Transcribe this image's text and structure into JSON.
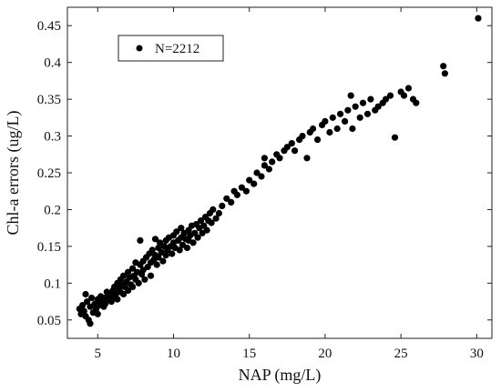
{
  "chart_data": {
    "type": "scatter",
    "title": "",
    "xlabel": "NAP (mg/L)",
    "ylabel": "Chl-a errors (ug/L)",
    "xlim": [
      3,
      31
    ],
    "ylim": [
      0.025,
      0.475
    ],
    "x_ticks": [
      5,
      10,
      15,
      20,
      25,
      30
    ],
    "y_ticks": [
      0.05,
      0.1,
      0.15,
      0.2,
      0.25,
      0.3,
      0.35,
      0.4,
      0.45
    ],
    "grid": false,
    "legend_position": "top-left",
    "marker_color": "#000000",
    "series": [
      {
        "name": "N=2212",
        "points": [
          [
            3.8,
            0.065
          ],
          [
            3.9,
            0.058
          ],
          [
            4.0,
            0.07
          ],
          [
            4.1,
            0.062
          ],
          [
            4.2,
            0.085
          ],
          [
            4.2,
            0.055
          ],
          [
            4.3,
            0.075
          ],
          [
            4.4,
            0.05
          ],
          [
            4.5,
            0.068
          ],
          [
            4.5,
            0.045
          ],
          [
            4.6,
            0.08
          ],
          [
            4.7,
            0.06
          ],
          [
            4.8,
            0.072
          ],
          [
            4.9,
            0.065
          ],
          [
            5.0,
            0.078
          ],
          [
            5.0,
            0.058
          ],
          [
            5.1,
            0.07
          ],
          [
            5.2,
            0.082
          ],
          [
            5.3,
            0.075
          ],
          [
            5.4,
            0.068
          ],
          [
            5.5,
            0.08
          ],
          [
            5.5,
            0.072
          ],
          [
            5.6,
            0.088
          ],
          [
            5.7,
            0.078
          ],
          [
            5.8,
            0.085
          ],
          [
            5.9,
            0.075
          ],
          [
            6.0,
            0.09
          ],
          [
            6.0,
            0.08
          ],
          [
            6.1,
            0.095
          ],
          [
            6.2,
            0.085
          ],
          [
            6.3,
            0.1
          ],
          [
            6.3,
            0.078
          ],
          [
            6.4,
            0.092
          ],
          [
            6.5,
            0.105
          ],
          [
            6.5,
            0.088
          ],
          [
            6.6,
            0.098
          ],
          [
            6.7,
            0.11
          ],
          [
            6.7,
            0.085
          ],
          [
            6.8,
            0.095
          ],
          [
            6.9,
            0.102
          ],
          [
            7.0,
            0.115
          ],
          [
            7.0,
            0.09
          ],
          [
            7.1,
            0.108
          ],
          [
            7.2,
            0.098
          ],
          [
            7.3,
            0.12
          ],
          [
            7.3,
            0.095
          ],
          [
            7.4,
            0.11
          ],
          [
            7.5,
            0.105
          ],
          [
            7.5,
            0.128
          ],
          [
            7.6,
            0.115
          ],
          [
            7.7,
            0.1
          ],
          [
            7.8,
            0.125
          ],
          [
            7.8,
            0.158
          ],
          [
            7.9,
            0.112
          ],
          [
            8.0,
            0.13
          ],
          [
            8.0,
            0.118
          ],
          [
            8.1,
            0.105
          ],
          [
            8.2,
            0.135
          ],
          [
            8.3,
            0.122
          ],
          [
            8.4,
            0.14
          ],
          [
            8.5,
            0.128
          ],
          [
            8.5,
            0.11
          ],
          [
            8.6,
            0.145
          ],
          [
            8.7,
            0.132
          ],
          [
            8.8,
            0.138
          ],
          [
            8.8,
            0.16
          ],
          [
            8.9,
            0.125
          ],
          [
            9.0,
            0.148
          ],
          [
            9.0,
            0.135
          ],
          [
            9.1,
            0.155
          ],
          [
            9.2,
            0.142
          ],
          [
            9.3,
            0.13
          ],
          [
            9.4,
            0.15
          ],
          [
            9.5,
            0.158
          ],
          [
            9.5,
            0.138
          ],
          [
            9.6,
            0.145
          ],
          [
            9.7,
            0.162
          ],
          [
            9.8,
            0.15
          ],
          [
            9.9,
            0.14
          ],
          [
            10.0,
            0.165
          ],
          [
            10.0,
            0.155
          ],
          [
            10.1,
            0.148
          ],
          [
            10.2,
            0.17
          ],
          [
            10.3,
            0.158
          ],
          [
            10.4,
            0.145
          ],
          [
            10.5,
            0.162
          ],
          [
            10.5,
            0.175
          ],
          [
            10.6,
            0.152
          ],
          [
            10.7,
            0.168
          ],
          [
            10.8,
            0.16
          ],
          [
            10.9,
            0.148
          ],
          [
            11.0,
            0.172
          ],
          [
            11.0,
            0.158
          ],
          [
            11.1,
            0.165
          ],
          [
            11.2,
            0.178
          ],
          [
            11.3,
            0.155
          ],
          [
            11.4,
            0.168
          ],
          [
            11.5,
            0.18
          ],
          [
            11.6,
            0.162
          ],
          [
            11.7,
            0.175
          ],
          [
            11.8,
            0.185
          ],
          [
            11.9,
            0.168
          ],
          [
            12.0,
            0.178
          ],
          [
            12.1,
            0.19
          ],
          [
            12.2,
            0.172
          ],
          [
            12.3,
            0.185
          ],
          [
            12.4,
            0.195
          ],
          [
            12.5,
            0.182
          ],
          [
            12.6,
            0.2
          ],
          [
            12.8,
            0.188
          ],
          [
            13.0,
            0.195
          ],
          [
            13.2,
            0.205
          ],
          [
            13.5,
            0.215
          ],
          [
            13.8,
            0.21
          ],
          [
            14.0,
            0.225
          ],
          [
            14.2,
            0.22
          ],
          [
            14.5,
            0.23
          ],
          [
            14.8,
            0.225
          ],
          [
            15.0,
            0.24
          ],
          [
            15.3,
            0.235
          ],
          [
            15.5,
            0.25
          ],
          [
            15.8,
            0.245
          ],
          [
            16.0,
            0.26
          ],
          [
            16.0,
            0.27
          ],
          [
            16.3,
            0.255
          ],
          [
            16.5,
            0.265
          ],
          [
            16.8,
            0.275
          ],
          [
            17.0,
            0.27
          ],
          [
            17.3,
            0.28
          ],
          [
            17.5,
            0.285
          ],
          [
            17.8,
            0.29
          ],
          [
            18.0,
            0.28
          ],
          [
            18.3,
            0.295
          ],
          [
            18.5,
            0.3
          ],
          [
            18.8,
            0.27
          ],
          [
            19.0,
            0.305
          ],
          [
            19.2,
            0.31
          ],
          [
            19.5,
            0.295
          ],
          [
            19.8,
            0.315
          ],
          [
            20.0,
            0.32
          ],
          [
            20.3,
            0.305
          ],
          [
            20.5,
            0.325
          ],
          [
            20.8,
            0.31
          ],
          [
            21.0,
            0.33
          ],
          [
            21.3,
            0.32
          ],
          [
            21.5,
            0.335
          ],
          [
            21.7,
            0.355
          ],
          [
            21.8,
            0.31
          ],
          [
            22.0,
            0.34
          ],
          [
            22.3,
            0.325
          ],
          [
            22.5,
            0.345
          ],
          [
            22.8,
            0.33
          ],
          [
            23.0,
            0.35
          ],
          [
            23.3,
            0.335
          ],
          [
            23.5,
            0.34
          ],
          [
            23.8,
            0.345
          ],
          [
            24.0,
            0.35
          ],
          [
            24.3,
            0.355
          ],
          [
            24.6,
            0.298
          ],
          [
            25.0,
            0.36
          ],
          [
            25.2,
            0.355
          ],
          [
            25.5,
            0.365
          ],
          [
            25.8,
            0.35
          ],
          [
            26.0,
            0.345
          ],
          [
            27.8,
            0.395
          ],
          [
            27.9,
            0.385
          ],
          [
            30.1,
            0.46
          ]
        ]
      }
    ]
  }
}
